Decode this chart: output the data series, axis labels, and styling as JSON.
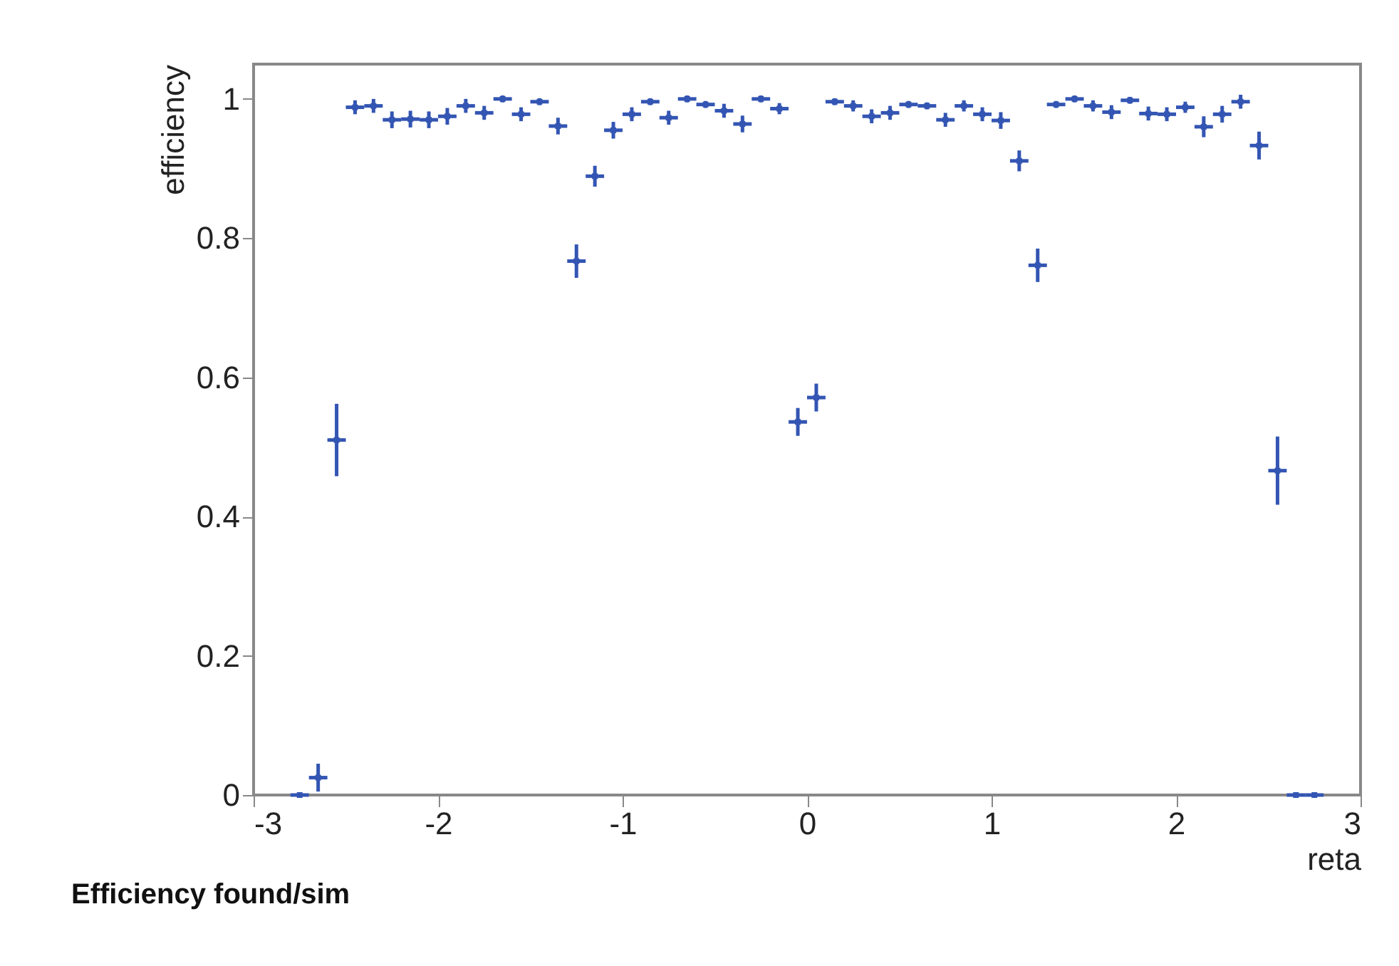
{
  "chart_data": {
    "type": "scatter",
    "xlabel": "reta",
    "ylabel": "efficiency",
    "annotations": [
      "Efficiency found/sim"
    ],
    "x": [
      -2.75,
      -2.65,
      -2.55,
      -2.45,
      -2.35,
      -2.25,
      -2.15,
      -2.05,
      -1.95,
      -1.85,
      -1.75,
      -1.65,
      -1.55,
      -1.45,
      -1.35,
      -1.25,
      -1.15,
      -1.05,
      -0.95,
      -0.85,
      -0.75,
      -0.65,
      -0.55,
      -0.45,
      -0.35,
      -0.25,
      -0.15,
      -0.05,
      0.05,
      0.15,
      0.25,
      0.35,
      0.45,
      0.55,
      0.65,
      0.75,
      0.85,
      0.95,
      1.05,
      1.15,
      1.25,
      1.35,
      1.45,
      1.55,
      1.65,
      1.75,
      1.85,
      1.95,
      2.05,
      2.15,
      2.25,
      2.35,
      2.45,
      2.55,
      2.65,
      2.75
    ],
    "series": [
      {
        "color": "#3355b3",
        "values": [
          0,
          0.025,
          0.51,
          0.988,
          0.99,
          0.97,
          0.971,
          0.97,
          0.975,
          0.99,
          0.98,
          1.0,
          0.978,
          0.996,
          0.961,
          0.767,
          0.889,
          0.955,
          0.978,
          0.996,
          0.973,
          1.0,
          0.992,
          0.983,
          0.964,
          1.0,
          0.986,
          0.536,
          0.571,
          0.996,
          0.99,
          0.975,
          0.98,
          0.992,
          0.99,
          0.97,
          0.99,
          0.978,
          0.969,
          0.911,
          0.761,
          0.992,
          1.0,
          0.99,
          0.981,
          0.998,
          0.979,
          0.978,
          0.988,
          0.96,
          0.978,
          0.996,
          0.933,
          0.466,
          0,
          0
        ],
        "errors": [
          0,
          0.02,
          0.052,
          0.01,
          0.01,
          0.012,
          0.012,
          0.012,
          0.012,
          0.01,
          0.01,
          0.005,
          0.01,
          0.005,
          0.012,
          0.024,
          0.015,
          0.012,
          0.01,
          0.005,
          0.01,
          0.005,
          0.005,
          0.01,
          0.012,
          0.005,
          0.008,
          0.02,
          0.02,
          0.005,
          0.008,
          0.01,
          0.01,
          0.005,
          0.005,
          0.01,
          0.008,
          0.01,
          0.012,
          0.015,
          0.024,
          0.005,
          0.005,
          0.008,
          0.01,
          0.005,
          0.01,
          0.01,
          0.008,
          0.015,
          0.012,
          0.01,
          0.02,
          0.049,
          0,
          0
        ],
        "xerrors": [
          0.05,
          0.05,
          0.05,
          0.05,
          0.05,
          0.05,
          0.05,
          0.05,
          0.05,
          0.05,
          0.05,
          0.05,
          0.05,
          0.05,
          0.05,
          0.05,
          0.05,
          0.05,
          0.05,
          0.05,
          0.05,
          0.05,
          0.05,
          0.05,
          0.05,
          0.05,
          0.05,
          0.05,
          0.05,
          0.05,
          0.05,
          0.05,
          0.05,
          0.05,
          0.05,
          0.05,
          0.05,
          0.05,
          0.05,
          0.05,
          0.05,
          0.05,
          0.05,
          0.05,
          0.05,
          0.05,
          0.05,
          0.05,
          0.05,
          0.05,
          0.05,
          0.05,
          0.05,
          0.05,
          0.05,
          0.05
        ]
      }
    ],
    "xlim": [
      -3,
      3
    ],
    "xticks": [
      -3,
      -2,
      -1,
      0,
      1,
      2,
      3
    ],
    "ylim": [
      0,
      1.05
    ],
    "yticks": [
      0,
      0.2,
      0.4,
      0.6,
      0.8,
      1
    ]
  }
}
